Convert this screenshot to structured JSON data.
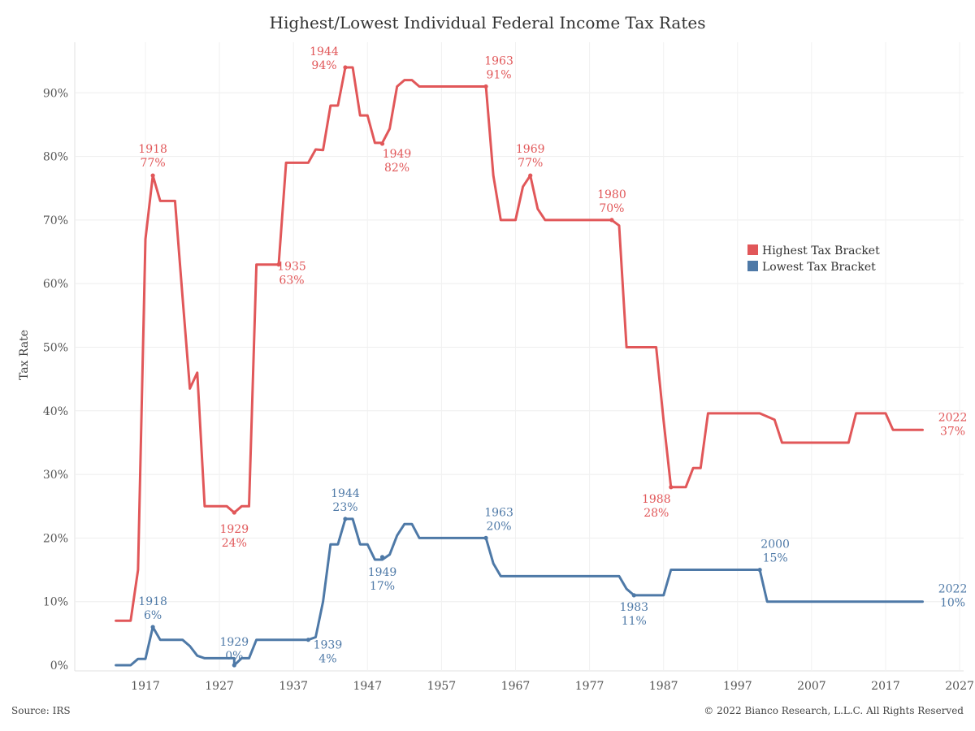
{
  "chart_data": {
    "type": "line",
    "title": "Highest/Lowest Individual Federal Income Tax Rates",
    "xlabel": "",
    "ylabel": "Tax Rate",
    "x_ticks": [
      "1917",
      "1927",
      "1937",
      "1947",
      "1957",
      "1967",
      "1977",
      "1987",
      "1997",
      "2007",
      "2017",
      "2027"
    ],
    "y_ticks": [
      "0%",
      "10%",
      "20%",
      "30%",
      "40%",
      "50%",
      "60%",
      "70%",
      "80%",
      "90%"
    ],
    "xlim": [
      1912,
      2027
    ],
    "ylim": [
      -1,
      100
    ],
    "grid": true,
    "legend_position": "right",
    "series": [
      {
        "name": "Highest Tax Bracket",
        "color": "#e15759",
        "points": [
          [
            1913,
            7
          ],
          [
            1915,
            7
          ],
          [
            1916,
            15
          ],
          [
            1917,
            67
          ],
          [
            1918,
            77
          ],
          [
            1919,
            73
          ],
          [
            1921,
            73
          ],
          [
            1922,
            58
          ],
          [
            1923,
            43.5
          ],
          [
            1924,
            46
          ],
          [
            1925,
            25
          ],
          [
            1928,
            25
          ],
          [
            1929,
            24
          ],
          [
            1930,
            25
          ],
          [
            1931,
            25
          ],
          [
            1932,
            63
          ],
          [
            1935,
            63
          ],
          [
            1936,
            79
          ],
          [
            1939,
            79
          ],
          [
            1940,
            81.1
          ],
          [
            1941,
            81
          ],
          [
            1942,
            88
          ],
          [
            1943,
            88
          ],
          [
            1944,
            94
          ],
          [
            1945,
            94
          ],
          [
            1946,
            86.45
          ],
          [
            1947,
            86.45
          ],
          [
            1948,
            82.13
          ],
          [
            1949,
            82.13
          ],
          [
            1950,
            84.36
          ],
          [
            1951,
            91
          ],
          [
            1952,
            92
          ],
          [
            1953,
            92
          ],
          [
            1954,
            91
          ],
          [
            1963,
            91
          ],
          [
            1964,
            77
          ],
          [
            1965,
            70
          ],
          [
            1967,
            70
          ],
          [
            1968,
            75.25
          ],
          [
            1969,
            77
          ],
          [
            1970,
            71.75
          ],
          [
            1971,
            70
          ],
          [
            1980,
            70
          ],
          [
            1981,
            69.13
          ],
          [
            1982,
            50
          ],
          [
            1986,
            50
          ],
          [
            1987,
            38.5
          ],
          [
            1988,
            28
          ],
          [
            1990,
            28
          ],
          [
            1991,
            31
          ],
          [
            1992,
            31
          ],
          [
            1993,
            39.6
          ],
          [
            2000,
            39.6
          ],
          [
            2002,
            38.6
          ],
          [
            2003,
            35
          ],
          [
            2012,
            35
          ],
          [
            2013,
            39.6
          ],
          [
            2017,
            39.6
          ],
          [
            2018,
            37
          ],
          [
            2022,
            37
          ]
        ]
      },
      {
        "name": "Lowest Tax Bracket",
        "color": "#4e79a7",
        "points": [
          [
            1913,
            0
          ],
          [
            1915,
            0
          ],
          [
            1916,
            1
          ],
          [
            1917,
            1
          ],
          [
            1918,
            6
          ],
          [
            1919,
            4
          ],
          [
            1922,
            4
          ],
          [
            1923,
            3
          ],
          [
            1924,
            1.5
          ],
          [
            1925,
            1.1
          ],
          [
            1929,
            1.1
          ],
          [
            1929,
            0
          ],
          [
            1930,
            1.1
          ],
          [
            1931,
            1.1
          ],
          [
            1932,
            4
          ],
          [
            1939,
            4
          ],
          [
            1940,
            4.4
          ],
          [
            1941,
            10
          ],
          [
            1942,
            19
          ],
          [
            1943,
            19
          ],
          [
            1944,
            23
          ],
          [
            1945,
            23
          ],
          [
            1946,
            19
          ],
          [
            1947,
            19
          ],
          [
            1948,
            16.6
          ],
          [
            1949,
            16.6
          ],
          [
            1950,
            17.4
          ],
          [
            1951,
            20.4
          ],
          [
            1952,
            22.2
          ],
          [
            1953,
            22.2
          ],
          [
            1954,
            20
          ],
          [
            1963,
            20
          ],
          [
            1964,
            16
          ],
          [
            1965,
            14
          ],
          [
            1978,
            14
          ],
          [
            1979,
            14
          ],
          [
            1981,
            14
          ],
          [
            1982,
            12
          ],
          [
            1983,
            11
          ],
          [
            1987,
            11
          ],
          [
            1988,
            15
          ],
          [
            2000,
            15
          ],
          [
            2001,
            10
          ],
          [
            2022,
            10
          ]
        ]
      }
    ],
    "annotations": [
      {
        "series": 0,
        "year": "1918",
        "value": "77%"
      },
      {
        "series": 0,
        "year": "1929",
        "value": "24%"
      },
      {
        "series": 0,
        "year": "1935",
        "value": "63%"
      },
      {
        "series": 0,
        "year": "1944",
        "value": "94%"
      },
      {
        "series": 0,
        "year": "1949",
        "value": "82%"
      },
      {
        "series": 0,
        "year": "1963",
        "value": "91%"
      },
      {
        "series": 0,
        "year": "1969",
        "value": "77%"
      },
      {
        "series": 0,
        "year": "1980",
        "value": "70%"
      },
      {
        "series": 0,
        "year": "1988",
        "value": "28%"
      },
      {
        "series": 0,
        "year": "2022",
        "value": "37%"
      },
      {
        "series": 1,
        "year": "1918",
        "value": "6%"
      },
      {
        "series": 1,
        "year": "1929",
        "value": "0%"
      },
      {
        "series": 1,
        "year": "1939",
        "value": "4%"
      },
      {
        "series": 1,
        "year": "1944",
        "value": "23%"
      },
      {
        "series": 1,
        "year": "1949",
        "value": "17%"
      },
      {
        "series": 1,
        "year": "1963",
        "value": "20%"
      },
      {
        "series": 1,
        "year": "1983",
        "value": "11%"
      },
      {
        "series": 1,
        "year": "2000",
        "value": "15%"
      },
      {
        "series": 1,
        "year": "2022",
        "value": "10%"
      }
    ]
  },
  "footer": {
    "source": "Source: IRS",
    "copyright": "© 2022 Bianco Research, L.L.C. All Rights Reserved"
  }
}
